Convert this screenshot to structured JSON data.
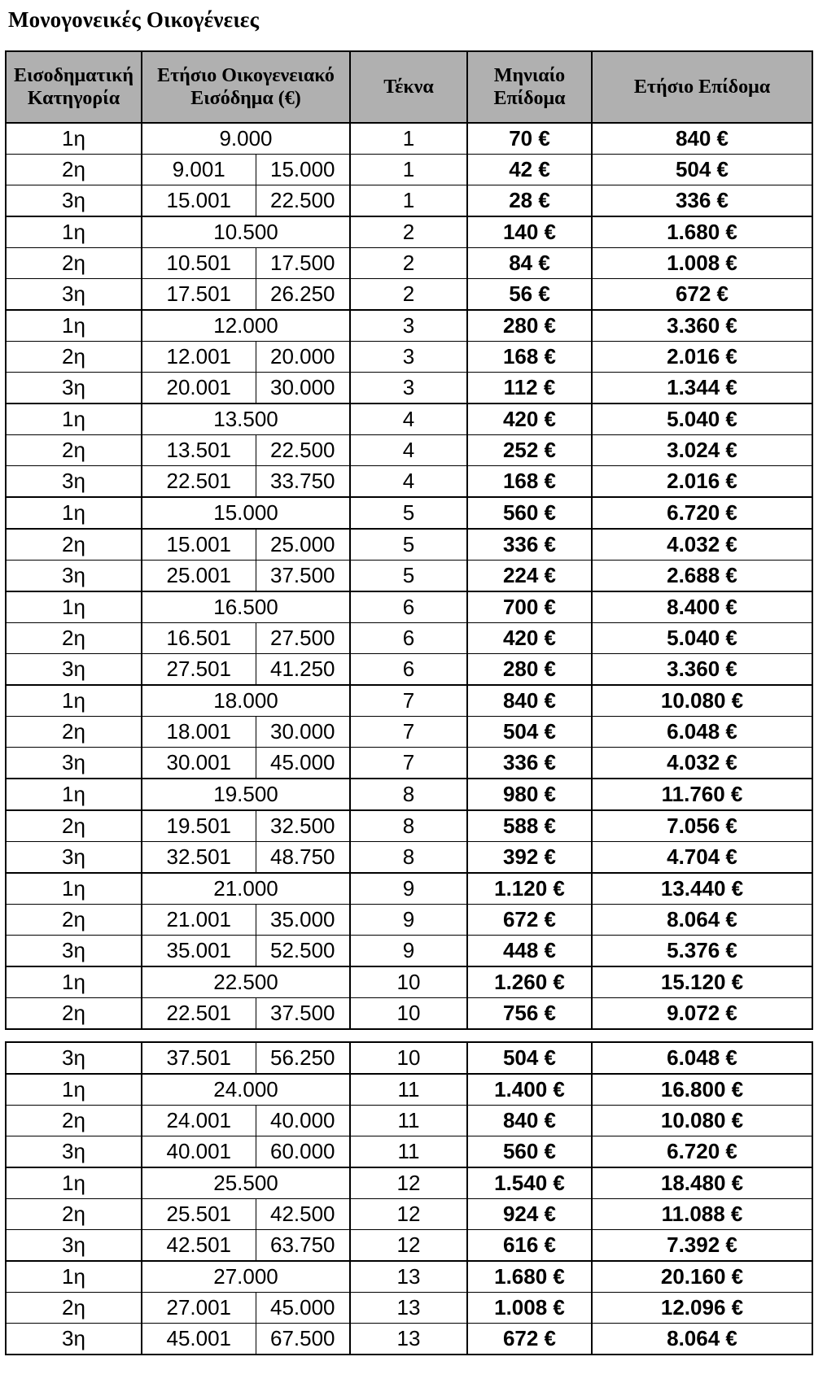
{
  "title": "Μονογονεικές Οικογένειες",
  "table": {
    "headers": {
      "category": "Εισοδηματική Κατηγορία",
      "income": "Ετήσιο Οικογενειακό Εισόδημα (€)",
      "children": "Τέκνα",
      "monthly": "Μηνιαίο Επίδομα",
      "annual": "Ετήσιο Επίδομα"
    },
    "colors": {
      "header_bg": "#b0b0b0",
      "border": "#000000"
    },
    "rows_part1": [
      {
        "cat": "1η",
        "income": "9.000",
        "tekna": "1",
        "monthly": "70 €",
        "annual": "840 €"
      },
      {
        "cat": "2η",
        "from": "9.001",
        "to": "15.000",
        "tekna": "1",
        "monthly": "42 €",
        "annual": "504 €"
      },
      {
        "cat": "3η",
        "from": "15.001",
        "to": "22.500",
        "tekna": "1",
        "monthly": "28 €",
        "annual": "336 €",
        "sep": true
      },
      {
        "cat": "1η",
        "income": "10.500",
        "tekna": "2",
        "monthly": "140 €",
        "annual": "1.680 €"
      },
      {
        "cat": "2η",
        "from": "10.501",
        "to": "17.500",
        "tekna": "2",
        "monthly": "84 €",
        "annual": "1.008 €"
      },
      {
        "cat": "3η",
        "from": "17.501",
        "to": "26.250",
        "tekna": "2",
        "monthly": "56 €",
        "annual": "672 €",
        "sep": true
      },
      {
        "cat": "1η",
        "income": "12.000",
        "tekna": "3",
        "monthly": "280 €",
        "annual": "3.360 €"
      },
      {
        "cat": "2η",
        "from": "12.001",
        "to": "20.000",
        "tekna": "3",
        "monthly": "168 €",
        "annual": "2.016 €"
      },
      {
        "cat": "3η",
        "from": "20.001",
        "to": "30.000",
        "tekna": "3",
        "monthly": "112 €",
        "annual": "1.344 €",
        "sep": true
      },
      {
        "cat": "1η",
        "income": "13.500",
        "tekna": "4",
        "monthly": "420 €",
        "annual": "5.040 €"
      },
      {
        "cat": "2η",
        "from": "13.501",
        "to": "22.500",
        "tekna": "4",
        "monthly": "252 €",
        "annual": "3.024 €"
      },
      {
        "cat": "3η",
        "from": "22.501",
        "to": "33.750",
        "tekna": "4",
        "monthly": "168 €",
        "annual": "2.016 €",
        "sep": true
      },
      {
        "cat": "1η",
        "income": "15.000",
        "tekna": "5",
        "monthly": "560 €",
        "annual": "6.720 €",
        "sep": true
      },
      {
        "cat": "2η",
        "from": "15.001",
        "to": "25.000",
        "tekna": "5",
        "monthly": "336 €",
        "annual": "4.032 €"
      },
      {
        "cat": "3η",
        "from": "25.001",
        "to": "37.500",
        "tekna": "5",
        "monthly": "224 €",
        "annual": "2.688 €",
        "sep": true
      },
      {
        "cat": "1η",
        "income": "16.500",
        "tekna": "6",
        "monthly": "700 €",
        "annual": "8.400 €"
      },
      {
        "cat": "2η",
        "from": "16.501",
        "to": "27.500",
        "tekna": "6",
        "monthly": "420 €",
        "annual": "5.040 €"
      },
      {
        "cat": "3η",
        "from": "27.501",
        "to": "41.250",
        "tekna": "6",
        "monthly": "280 €",
        "annual": "3.360 €",
        "sep": true
      },
      {
        "cat": "1η",
        "income": "18.000",
        "tekna": "7",
        "monthly": "840 €",
        "annual": "10.080 €"
      },
      {
        "cat": "2η",
        "from": "18.001",
        "to": "30.000",
        "tekna": "7",
        "monthly": "504 €",
        "annual": "6.048 €"
      },
      {
        "cat": "3η",
        "from": "30.001",
        "to": "45.000",
        "tekna": "7",
        "monthly": "336 €",
        "annual": "4.032 €",
        "sep": true
      },
      {
        "cat": "1η",
        "income": "19.500",
        "tekna": "8",
        "monthly": "980 €",
        "annual": "11.760 €",
        "sep": true
      },
      {
        "cat": "2η",
        "from": "19.501",
        "to": "32.500",
        "tekna": "8",
        "monthly": "588 €",
        "annual": "7.056 €"
      },
      {
        "cat": "3η",
        "from": "32.501",
        "to": "48.750",
        "tekna": "8",
        "monthly": "392 €",
        "annual": "4.704 €",
        "sep": true
      },
      {
        "cat": "1η",
        "income": "21.000",
        "tekna": "9",
        "monthly": "1.120 €",
        "annual": "13.440 €"
      },
      {
        "cat": "2η",
        "from": "21.001",
        "to": "35.000",
        "tekna": "9",
        "monthly": "672 €",
        "annual": "8.064 €"
      },
      {
        "cat": "3η",
        "from": "35.001",
        "to": "52.500",
        "tekna": "9",
        "monthly": "448 €",
        "annual": "5.376 €",
        "sep": true
      },
      {
        "cat": "1η",
        "income": "22.500",
        "tekna": "10",
        "monthly": "1.260 €",
        "annual": "15.120 €"
      },
      {
        "cat": "2η",
        "from": "22.501",
        "to": "37.500",
        "tekna": "10",
        "monthly": "756 €",
        "annual": "9.072 €"
      }
    ],
    "rows_part2": [
      {
        "cat": "3η",
        "from": "37.501",
        "to": "56.250",
        "tekna": "10",
        "monthly": "504 €",
        "annual": "6.048 €",
        "sep": true
      },
      {
        "cat": "1η",
        "income": "24.000",
        "tekna": "11",
        "monthly": "1.400 €",
        "annual": "16.800 €"
      },
      {
        "cat": "2η",
        "from": "24.001",
        "to": "40.000",
        "tekna": "11",
        "monthly": "840 €",
        "annual": "10.080 €"
      },
      {
        "cat": "3η",
        "from": "40.001",
        "to": "60.000",
        "tekna": "11",
        "monthly": "560 €",
        "annual": "6.720 €",
        "sep": true
      },
      {
        "cat": "1η",
        "income": "25.500",
        "tekna": "12",
        "monthly": "1.540 €",
        "annual": "18.480 €"
      },
      {
        "cat": "2η",
        "from": "25.501",
        "to": "42.500",
        "tekna": "12",
        "monthly": "924 €",
        "annual": "11.088 €"
      },
      {
        "cat": "3η",
        "from": "42.501",
        "to": "63.750",
        "tekna": "12",
        "monthly": "616 €",
        "annual": "7.392 €",
        "sep": true
      },
      {
        "cat": "1η",
        "income": "27.000",
        "tekna": "13",
        "monthly": "1.680 €",
        "annual": "20.160 €"
      },
      {
        "cat": "2η",
        "from": "27.001",
        "to": "45.000",
        "tekna": "13",
        "monthly": "1.008 €",
        "annual": "12.096 €"
      },
      {
        "cat": "3η",
        "from": "45.001",
        "to": "67.500",
        "tekna": "13",
        "monthly": "672 €",
        "annual": "8.064 €"
      }
    ]
  }
}
